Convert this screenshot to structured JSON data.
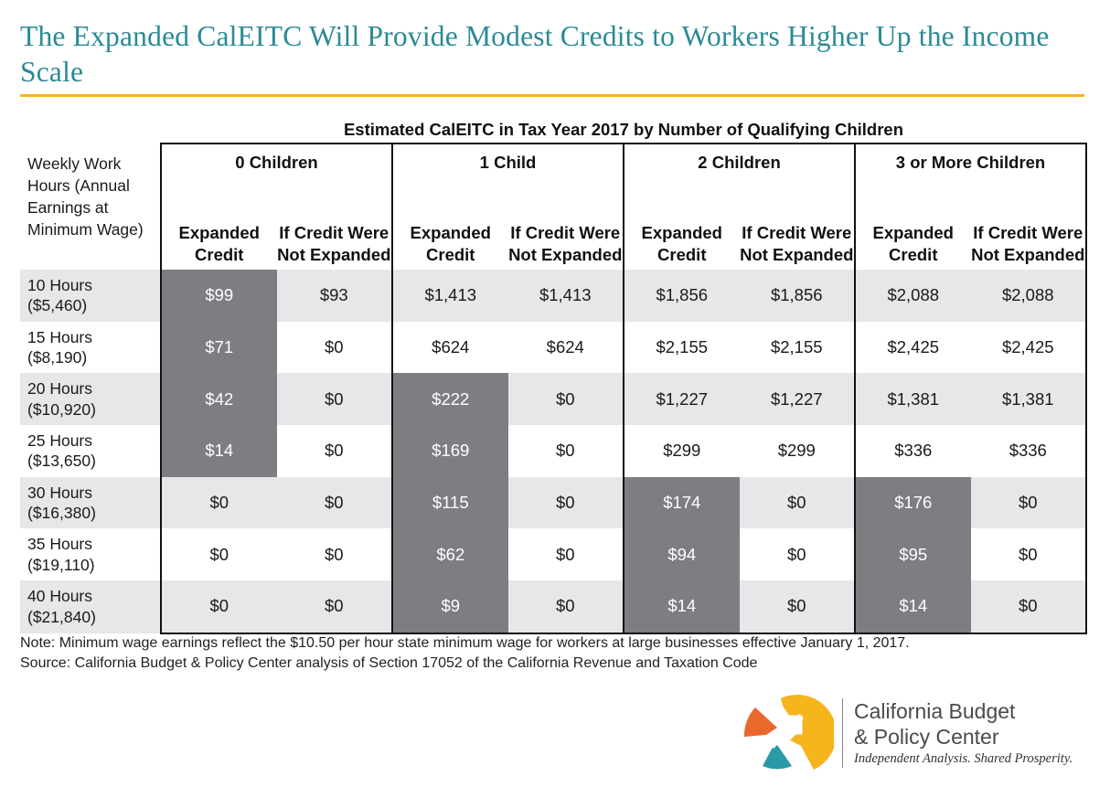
{
  "title": "The Expanded CalEITC Will Provide Modest Credits to Workers Higher Up the Income Scale",
  "colors": {
    "title": "#2a8a96",
    "rule": "#f6b41d",
    "highlight": "#7d7e82",
    "shade": "#e6e7e8",
    "logo_orange": "#e9692d",
    "logo_yellow": "#f6b41d",
    "logo_teal": "#2a9aa6"
  },
  "chart_data": {
    "type": "table",
    "title": "Estimated CalEITC in Tax Year 2017 by Number of Qualifying Children",
    "row_header": "Weekly Work Hours (Annual Earnings at Minimum Wage)",
    "groups": [
      "0 Children",
      "1 Child",
      "2 Children",
      "3 or More Children"
    ],
    "subcolumns": [
      "Expanded Credit",
      "If Credit Were Not Expanded"
    ],
    "rows": [
      {
        "hours": "10 Hours",
        "earnings": "($5,460)",
        "values": [
          "$99",
          "$93",
          "$1,413",
          "$1,413",
          "$1,856",
          "$1,856",
          "$2,088",
          "$2,088"
        ]
      },
      {
        "hours": "15 Hours",
        "earnings": "($8,190)",
        "values": [
          "$71",
          "$0",
          "$624",
          "$624",
          "$2,155",
          "$2,155",
          "$2,425",
          "$2,425"
        ]
      },
      {
        "hours": "20 Hours",
        "earnings": "($10,920)",
        "values": [
          "$42",
          "$0",
          "$222",
          "$0",
          "$1,227",
          "$1,227",
          "$1,381",
          "$1,381"
        ]
      },
      {
        "hours": "25 Hours",
        "earnings": "($13,650)",
        "values": [
          "$14",
          "$0",
          "$169",
          "$0",
          "$299",
          "$299",
          "$336",
          "$336"
        ]
      },
      {
        "hours": "30 Hours",
        "earnings": "($16,380)",
        "values": [
          "$0",
          "$0",
          "$115",
          "$0",
          "$174",
          "$0",
          "$176",
          "$0"
        ]
      },
      {
        "hours": "35 Hours",
        "earnings": "($19,110)",
        "values": [
          "$0",
          "$0",
          "$62",
          "$0",
          "$94",
          "$0",
          "$95",
          "$0"
        ]
      },
      {
        "hours": "40 Hours",
        "earnings": "($21,840)",
        "values": [
          "$0",
          "$0",
          "$9",
          "$0",
          "$14",
          "$0",
          "$14",
          "$0"
        ]
      }
    ],
    "highlighted": [
      [
        true,
        false,
        false,
        false,
        false,
        false,
        false,
        false
      ],
      [
        true,
        false,
        false,
        false,
        false,
        false,
        false,
        false
      ],
      [
        true,
        false,
        true,
        false,
        false,
        false,
        false,
        false
      ],
      [
        true,
        false,
        true,
        false,
        false,
        false,
        false,
        false
      ],
      [
        false,
        false,
        true,
        false,
        true,
        false,
        true,
        false
      ],
      [
        false,
        false,
        true,
        false,
        true,
        false,
        true,
        false
      ],
      [
        false,
        false,
        true,
        false,
        true,
        false,
        true,
        false
      ]
    ]
  },
  "notes": {
    "note": "Note: Minimum wage earnings reflect the $10.50 per hour state minimum wage for workers at large businesses effective January 1, 2017.",
    "source": "Source: California Budget & Policy Center analysis of Section 17052 of the California Revenue and Taxation Code"
  },
  "logo": {
    "name_line1": "California Budget",
    "name_line2": "& Policy Center",
    "tagline": "Independent Analysis. Shared Prosperity."
  }
}
